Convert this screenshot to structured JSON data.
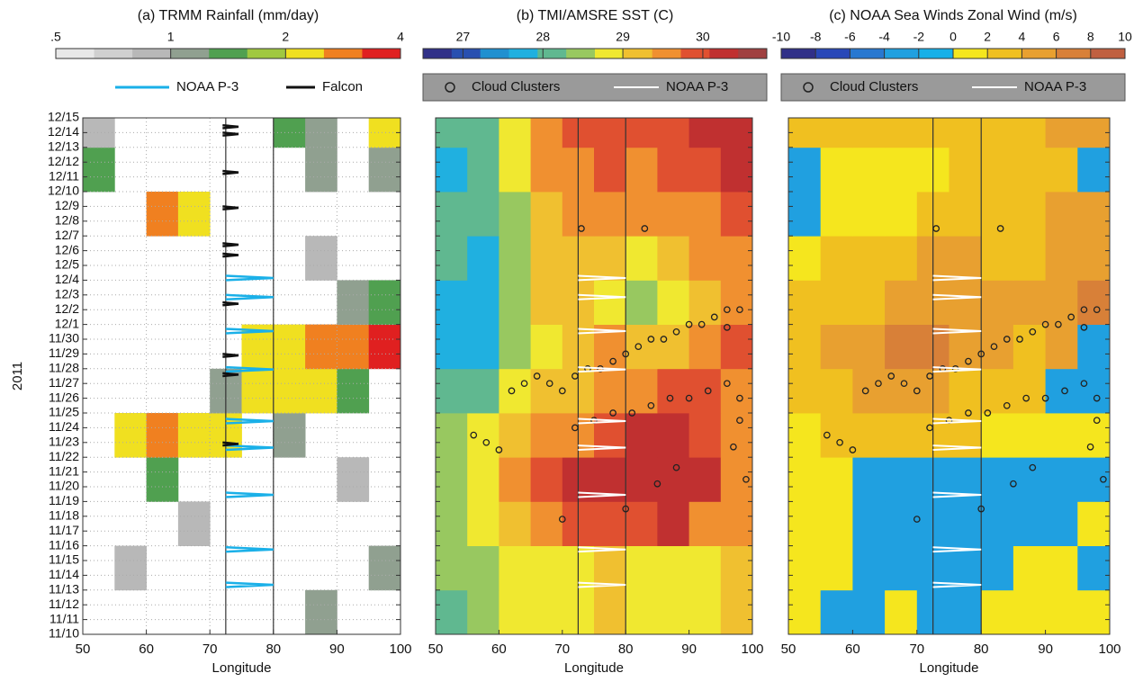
{
  "chart_data": [
    {
      "type": "heatmap",
      "title": "(a) TRMM Rainfall (mm/day)",
      "xlabel": "Longitude",
      "ylabel": "2011",
      "xlim": [
        50,
        100
      ],
      "xticks": [
        50,
        60,
        70,
        80,
        90,
        100
      ],
      "ylim": [
        0,
        35
      ],
      "grid": true,
      "ref_lines": [
        72.5,
        80
      ],
      "yticks": [
        {
          "value": 0,
          "label": "11/10"
        },
        {
          "value": 1,
          "label": "11/11"
        },
        {
          "value": 2,
          "label": "11/12"
        },
        {
          "value": 3,
          "label": "11/13"
        },
        {
          "value": 4,
          "label": "11/14"
        },
        {
          "value": 5,
          "label": "11/15"
        },
        {
          "value": 6,
          "label": "11/16"
        },
        {
          "value": 7,
          "label": "11/17"
        },
        {
          "value": 8,
          "label": "11/18"
        },
        {
          "value": 9,
          "label": "11/19"
        },
        {
          "value": 10,
          "label": "11/20"
        },
        {
          "value": 11,
          "label": "11/21"
        },
        {
          "value": 12,
          "label": "11/22"
        },
        {
          "value": 13,
          "label": "11/23"
        },
        {
          "value": 14,
          "label": "11/24"
        },
        {
          "value": 15,
          "label": "11/25"
        },
        {
          "value": 16,
          "label": "11/26"
        },
        {
          "value": 17,
          "label": "11/27"
        },
        {
          "value": 18,
          "label": "11/28"
        },
        {
          "value": 19,
          "label": "11/29"
        },
        {
          "value": 20,
          "label": "11/30"
        },
        {
          "value": 21,
          "label": "12/1"
        },
        {
          "value": 22,
          "label": "12/2"
        },
        {
          "value": 23,
          "label": "12/3"
        },
        {
          "value": 24,
          "label": "12/4"
        },
        {
          "value": 25,
          "label": "12/5"
        },
        {
          "value": 26,
          "label": "12/6"
        },
        {
          "value": 27,
          "label": "12/7"
        },
        {
          "value": 28,
          "label": "12/8"
        },
        {
          "value": 29,
          "label": "12/9"
        },
        {
          "value": 30,
          "label": "12/10"
        },
        {
          "value": 31,
          "label": "12/11"
        },
        {
          "value": 32,
          "label": "12/12"
        },
        {
          "value": 33,
          "label": "12/13"
        },
        {
          "value": 34,
          "label": "12/14"
        },
        {
          "value": 35,
          "label": "12/15"
        }
      ],
      "xbins": [
        50,
        55,
        60,
        65,
        70,
        75,
        80,
        85,
        90,
        95,
        100
      ],
      "ybins": [
        0,
        3,
        6,
        9,
        12,
        15,
        18,
        21,
        24,
        27,
        30,
        33,
        35
      ],
      "clim": [
        0.5,
        4
      ],
      "log_color": true,
      "cticks": [
        {
          "value": 0.5,
          "label": ".5"
        },
        1,
        2,
        4
      ],
      "colormap": [
        "#e8e8e8",
        "#d0d0d0",
        "#b8b8b8",
        "#90a090",
        "#50a050",
        "#a0c840",
        "#f0e020",
        "#f08020",
        "#e02020"
      ],
      "z": [
        [
          null,
          null,
          null,
          null,
          null,
          null,
          null,
          1,
          null,
          null
        ],
        [
          null,
          0.8,
          null,
          null,
          null,
          null,
          null,
          null,
          null,
          1
        ],
        [
          null,
          null,
          null,
          0.8,
          null,
          null,
          null,
          null,
          null,
          null
        ],
        [
          null,
          null,
          1.5,
          null,
          null,
          null,
          null,
          null,
          0.8,
          null
        ],
        [
          null,
          2.5,
          3,
          2,
          2,
          null,
          1,
          null,
          null,
          null
        ],
        [
          null,
          null,
          null,
          null,
          1,
          2.5,
          2,
          2.5,
          1.5,
          null
        ],
        [
          null,
          null,
          null,
          null,
          null,
          2,
          2.5,
          3,
          3,
          3.5
        ],
        [
          null,
          null,
          null,
          null,
          null,
          null,
          null,
          null,
          1,
          1.5
        ],
        [
          null,
          null,
          null,
          null,
          null,
          null,
          null,
          0.8,
          null,
          null
        ],
        [
          null,
          null,
          3,
          2,
          null,
          null,
          null,
          null,
          null,
          null
        ],
        [
          1.5,
          null,
          null,
          null,
          null,
          null,
          null,
          1,
          null,
          1
        ],
        [
          0.8,
          null,
          null,
          null,
          null,
          null,
          1.5,
          1.2,
          null,
          2
        ]
      ],
      "series": [
        {
          "name": "NOAA P-3",
          "color": "#1ab0e8",
          "x": [
            72.5,
            80,
            72.5,
            null,
            72.5,
            80,
            72.5,
            null,
            72.5,
            80,
            72.5,
            null,
            72.5,
            80,
            72.5,
            null,
            72.5,
            80,
            72.5,
            null,
            72.5,
            80,
            72.5,
            null,
            72.5,
            80,
            72.5,
            null,
            72.5,
            80,
            72.5,
            null,
            72.5,
            80,
            72.5
          ],
          "y": [
            3.2,
            3.35,
            3.5,
            null,
            5.6,
            5.75,
            5.9,
            null,
            9.3,
            9.45,
            9.6,
            null,
            12.5,
            12.65,
            12.8,
            null,
            14.3,
            14.45,
            14.6,
            null,
            17.8,
            17.95,
            18.1,
            null,
            20.4,
            20.55,
            20.7,
            null,
            22.7,
            22.85,
            23,
            null,
            24,
            24.15,
            24.3
          ]
        },
        {
          "name": "Falcon",
          "color": "#111111",
          "x": [
            72,
            74.5,
            72,
            null,
            72,
            74.5,
            72,
            null,
            72,
            74.5,
            72,
            null,
            72,
            74.5,
            72,
            null,
            72,
            74.5,
            72,
            null,
            72,
            74.5,
            72,
            null,
            72,
            74.5,
            72,
            null,
            72,
            74.5,
            72,
            null,
            72,
            74.5,
            72,
            null,
            72,
            74.5,
            72
          ],
          "y": [
            12.8,
            12.9,
            13,
            null,
            17.5,
            17.6,
            17.7,
            null,
            18.8,
            18.9,
            19,
            null,
            22.3,
            22.4,
            22.5,
            null,
            25.6,
            25.7,
            25.8,
            null,
            26.3,
            26.4,
            26.5,
            null,
            28.8,
            28.9,
            29,
            null,
            31.2,
            31.3,
            31.4,
            null,
            33.8,
            33.9,
            34,
            null,
            34.3,
            34.4,
            34.5
          ]
        }
      ]
    },
    {
      "type": "heatmap",
      "title": "(b) TMI/AMSRE SST (C)",
      "xlabel": "Longitude",
      "xlim": [
        50,
        100
      ],
      "xticks": [
        50,
        60,
        70,
        80,
        90,
        100
      ],
      "ylim": [
        0,
        35
      ],
      "ref_lines": [
        72.5,
        80
      ],
      "xbins": [
        50,
        55,
        60,
        65,
        70,
        75,
        80,
        85,
        90,
        95,
        100
      ],
      "ybins": [
        0,
        3,
        6,
        9,
        12,
        15,
        18,
        21,
        24,
        27,
        30,
        33,
        35
      ],
      "clim": [
        26.5,
        30.8
      ],
      "cticks": [
        27,
        28,
        29,
        30
      ],
      "colormap": [
        "#303088",
        "#2850b0",
        "#2090d0",
        "#20b0e0",
        "#60b890",
        "#98c860",
        "#f0e830",
        "#f0c030",
        "#f09030",
        "#e05030",
        "#c03030",
        "#a04040"
      ],
      "z": [
        [
          28.2,
          28.5,
          28.8,
          29,
          29,
          29.2,
          29,
          28.9,
          29,
          29.3
        ],
        [
          28.3,
          28.6,
          28.9,
          29,
          29,
          29.1,
          28.8,
          28.9,
          29,
          29.2
        ],
        [
          28.5,
          28.9,
          29.3,
          29.7,
          29.8,
          29.8,
          30,
          30.1,
          29.6,
          29.5
        ],
        [
          28.5,
          29,
          29.6,
          30,
          30.2,
          30.2,
          30.3,
          30.4,
          30.2,
          29.7
        ],
        [
          28.4,
          28.7,
          29.2,
          29.5,
          29.7,
          30,
          30.1,
          30.3,
          30,
          29.5
        ],
        [
          28,
          28.1,
          28.8,
          29.2,
          29.3,
          29.5,
          29.7,
          29.9,
          29.8,
          29.6
        ],
        [
          27.8,
          27.9,
          28.6,
          29,
          29.2,
          29.4,
          29.2,
          29.3,
          29.5,
          29.8
        ],
        [
          27.9,
          27.8,
          28.5,
          29.1,
          29.3,
          28.7,
          28.5,
          29,
          29.3,
          29.6
        ],
        [
          28,
          27.9,
          28.5,
          29.2,
          29.3,
          29.1,
          29,
          29.2,
          29.4,
          29.7
        ],
        [
          28.1,
          28,
          28.6,
          29.3,
          29.4,
          29.6,
          29.6,
          29.5,
          29.6,
          29.8
        ],
        [
          27.9,
          28,
          28.8,
          29.4,
          29.7,
          29.8,
          29.7,
          29.8,
          29.9,
          30.2
        ],
        [
          28,
          28.1,
          29,
          29.6,
          29.8,
          29.9,
          29.9,
          30,
          30.1,
          30.4
        ]
      ],
      "series": [
        {
          "name": "Cloud Clusters",
          "color": "#222222",
          "x": [
            62,
            64,
            66,
            68,
            70,
            72,
            74,
            76,
            78,
            80,
            82,
            84,
            86,
            88,
            90,
            92,
            94,
            96,
            98,
            72,
            75,
            78,
            81,
            84,
            87,
            90,
            93,
            96,
            98,
            56,
            58,
            60,
            70,
            80,
            85,
            88,
            97,
            99,
            98,
            96,
            83,
            73
          ],
          "y": [
            16.5,
            17,
            17.5,
            17,
            16.5,
            17.5,
            18,
            18,
            18.5,
            19,
            19.5,
            20,
            20,
            20.5,
            21,
            21,
            21.5,
            22,
            22,
            14,
            14.5,
            15,
            15,
            15.5,
            16,
            16,
            16.5,
            17,
            16,
            13.5,
            13,
            12.5,
            7.8,
            8.5,
            10.2,
            11.3,
            12.7,
            10.5,
            14.5,
            20.8,
            27.5,
            27.5
          ]
        },
        {
          "name": "NOAA P-3",
          "color": "#ffffff"
        }
      ]
    },
    {
      "type": "heatmap",
      "title": "(c) NOAA Sea Winds Zonal Wind (m/s)",
      "xlabel": "Longitude",
      "xlim": [
        50,
        100
      ],
      "xticks": [
        50,
        60,
        70,
        80,
        90,
        100
      ],
      "ylim": [
        0,
        35
      ],
      "ref_lines": [
        72.5,
        80
      ],
      "xbins": [
        50,
        55,
        60,
        65,
        70,
        75,
        80,
        85,
        90,
        95,
        100
      ],
      "ybins": [
        0,
        3,
        6,
        9,
        12,
        15,
        18,
        21,
        24,
        27,
        30,
        33,
        35
      ],
      "clim": [
        -10,
        10
      ],
      "cticks": [
        -10,
        -8,
        -6,
        -4,
        -2,
        0,
        2,
        4,
        6,
        8,
        10
      ],
      "colormap": [
        "#303088",
        "#2848b8",
        "#2878d0",
        "#20a0e0",
        "#18b0e8",
        "#f5e61e",
        "#f0c020",
        "#e8a030",
        "#d88038",
        "#c06040"
      ],
      "z": [
        [
          1,
          -3,
          -3,
          0.5,
          -3,
          -3,
          0.5,
          0.5,
          1,
          0.5
        ],
        [
          0.5,
          0.5,
          -3,
          -3,
          -3,
          -3,
          -3,
          1,
          0.5,
          -3
        ],
        [
          1,
          0.5,
          -3,
          -3,
          -3,
          -3,
          -3,
          -3,
          -3,
          1
        ],
        [
          1,
          1,
          -3,
          -3,
          -3,
          -3,
          -3,
          -3,
          -3,
          -3
        ],
        [
          1.5,
          2,
          2.5,
          3,
          3,
          2.5,
          1,
          1,
          0.5,
          1
        ],
        [
          2,
          3,
          4,
          5,
          4,
          3,
          3,
          2,
          -3,
          -3
        ],
        [
          3,
          4,
          5,
          6,
          6,
          5,
          4,
          3,
          4,
          -3
        ],
        [
          2,
          3,
          3,
          4,
          5,
          5,
          4,
          4,
          5,
          6
        ],
        [
          1,
          2,
          2,
          3,
          4,
          4,
          3,
          3,
          4,
          5
        ],
        [
          -3,
          1,
          1.5,
          1,
          2,
          3,
          3,
          3,
          4,
          4
        ],
        [
          -3,
          1,
          1,
          1.5,
          1.5,
          2,
          2,
          2.5,
          3,
          -3
        ],
        [
          2,
          2,
          3,
          3,
          3,
          3,
          3,
          3,
          4,
          4
        ]
      ],
      "series": [
        {
          "name": "Cloud Clusters",
          "color": "#222222"
        },
        {
          "name": "NOAA P-3",
          "color": "#ffffff"
        }
      ]
    }
  ]
}
